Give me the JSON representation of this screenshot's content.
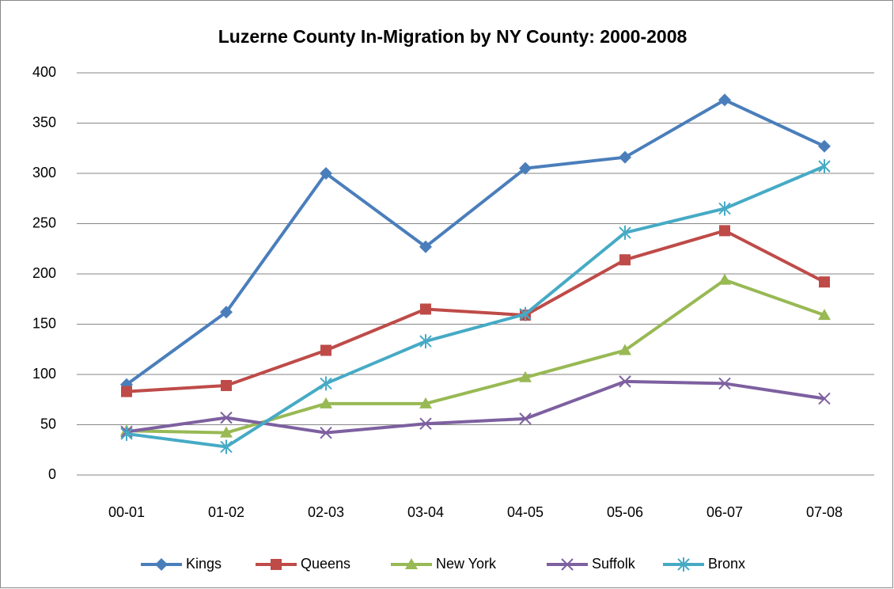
{
  "chart_data": {
    "type": "line",
    "title": "Luzerne County In-Migration by NY County: 2000-2008",
    "categories": [
      "00-01",
      "01-02",
      "02-03",
      "03-04",
      "04-05",
      "05-06",
      "06-07",
      "07-08"
    ],
    "series": [
      {
        "name": "Kings",
        "color": "#4a7ebb",
        "marker": "diamond",
        "values": [
          90,
          162,
          300,
          227,
          305,
          316,
          373,
          327
        ]
      },
      {
        "name": "Queens",
        "color": "#be4b48",
        "marker": "square",
        "values": [
          83,
          89,
          124,
          165,
          159,
          214,
          243,
          192
        ]
      },
      {
        "name": "New York",
        "color": "#98b954",
        "marker": "triangle",
        "values": [
          44,
          42,
          71,
          71,
          97,
          124,
          194,
          159
        ]
      },
      {
        "name": "Suffolk",
        "color": "#7d60a0",
        "marker": "x",
        "values": [
          43,
          57,
          42,
          51,
          56,
          93,
          91,
          76
        ]
      },
      {
        "name": "Bronx",
        "color": "#46aac5",
        "marker": "star",
        "values": [
          41,
          28,
          91,
          133,
          160,
          241,
          265,
          307
        ]
      }
    ],
    "ylim": [
      0,
      400
    ],
    "yticks": [
      0,
      50,
      100,
      150,
      200,
      250,
      300,
      350,
      400
    ],
    "grid": true,
    "legend": "bottom"
  }
}
